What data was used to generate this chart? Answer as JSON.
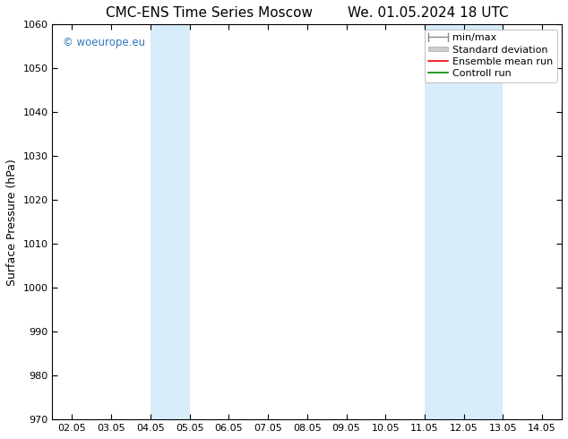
{
  "title_left": "CMC-ENS Time Series Moscow",
  "title_right": "We. 01.05.2024 18 UTC",
  "ylabel": "Surface Pressure (hPa)",
  "xlabel": "",
  "ylim": [
    970,
    1060
  ],
  "yticks": [
    970,
    980,
    990,
    1000,
    1010,
    1020,
    1030,
    1040,
    1050,
    1060
  ],
  "xtick_labels": [
    "02.05",
    "03.05",
    "04.05",
    "05.05",
    "06.05",
    "07.05",
    "08.05",
    "09.05",
    "10.05",
    "11.05",
    "12.05",
    "13.05",
    "14.05"
  ],
  "xtick_positions": [
    0,
    1,
    2,
    3,
    4,
    5,
    6,
    7,
    8,
    9,
    10,
    11,
    12
  ],
  "xlim": [
    -0.5,
    12.5
  ],
  "shaded_bands": [
    {
      "x_start": 2,
      "x_end": 3,
      "color": "#d8ecfa"
    },
    {
      "x_start": 9,
      "x_end": 11,
      "color": "#d8ecfa"
    }
  ],
  "watermark": "© woeurope.eu",
  "watermark_color": "#3377bb",
  "legend_entries": [
    {
      "label": "min/max",
      "color": "#aaaaaa",
      "style": "line_with_caps"
    },
    {
      "label": "Standard deviation",
      "color": "#cccccc",
      "style": "filled_box"
    },
    {
      "label": "Ensemble mean run",
      "color": "#ff0000",
      "style": "line"
    },
    {
      "label": "Controll run",
      "color": "#008800",
      "style": "line"
    }
  ],
  "bg_color": "#ffffff",
  "title_fontsize": 11,
  "axis_fontsize": 9,
  "tick_fontsize": 8,
  "legend_fontsize": 8
}
